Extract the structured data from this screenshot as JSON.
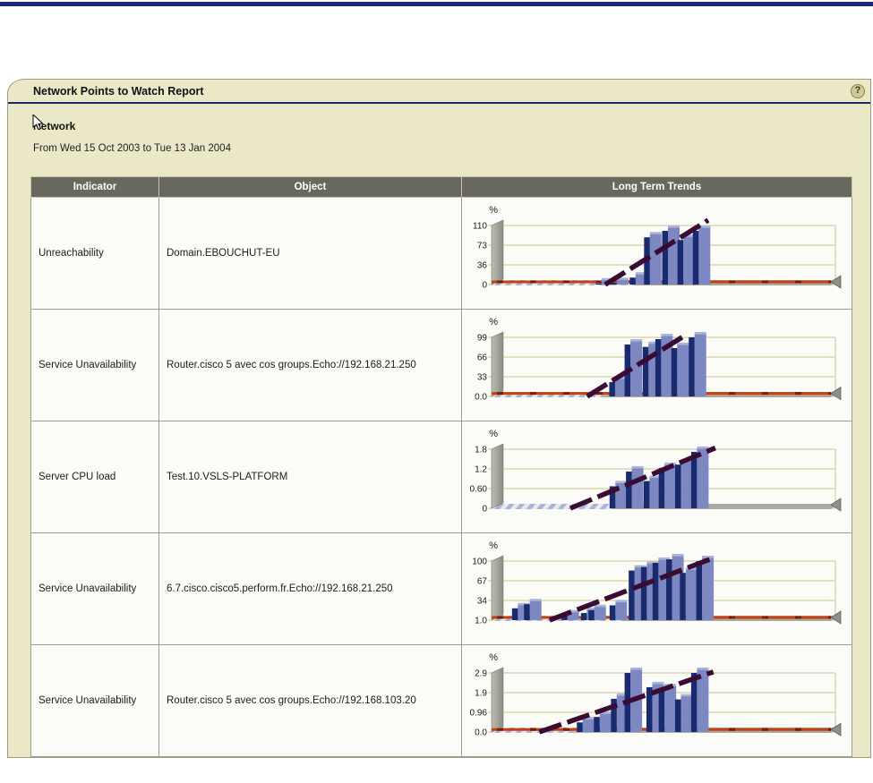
{
  "panel": {
    "title": "Network Points to Watch Report",
    "help_icon": "?",
    "section_title": "Network",
    "date_range": "From Wed 15 Oct 2003 to Tue 13 Jan 2004"
  },
  "table": {
    "columns": [
      "Indicator",
      "Object",
      "Long Term Trends"
    ],
    "rows": [
      {
        "indicator": "Unreachability",
        "object": "Domain.EBOUCHUT-EU"
      },
      {
        "indicator": "Service Unavailability",
        "object": "Router.cisco 5 avec cos groups.Echo://192.168.21.250"
      },
      {
        "indicator": "Server CPU load",
        "object": "Test.10.VSLS-PLATFORM"
      },
      {
        "indicator": "Service Unavailability",
        "object": "6.7.cisco.cisco5.perform.fr.Echo://192.168.21.250"
      },
      {
        "indicator": "Service Unavailability",
        "object": "Router.cisco 5 avec cos groups.Echo://192.168.103.20"
      }
    ]
  },
  "chart_data": [
    {
      "type": "bar",
      "title": "",
      "xlabel": "",
      "ylabel": "%",
      "yticks": [
        "110",
        "73",
        "36",
        "0"
      ],
      "ylim": [
        0,
        110
      ],
      "grid": true,
      "legend": [],
      "bars": [
        {
          "x": 0.305,
          "v": 2
        },
        {
          "x": 0.35,
          "v": 3
        },
        {
          "x": 0.405,
          "v": 13
        },
        {
          "x": 0.447,
          "v": 88
        },
        {
          "x": 0.5,
          "v": 100
        },
        {
          "x": 0.545,
          "v": 83
        },
        {
          "x": 0.59,
          "v": 100
        }
      ],
      "trend_line": {
        "x1": 0.333,
        "v1": 0,
        "x2": 0.635,
        "v2": 120
      },
      "threshold": 5,
      "stripe_end": 0.42
    },
    {
      "type": "bar",
      "title": "",
      "xlabel": "",
      "ylabel": "%",
      "yticks": [
        "99",
        "66",
        "33",
        "0.0"
      ],
      "ylim": [
        0,
        99
      ],
      "grid": true,
      "legend": [],
      "bars": [
        {
          "x": 0.345,
          "v": 24
        },
        {
          "x": 0.39,
          "v": 87
        },
        {
          "x": 0.443,
          "v": 83
        },
        {
          "x": 0.48,
          "v": 96
        },
        {
          "x": 0.527,
          "v": 81
        },
        {
          "x": 0.578,
          "v": 99
        }
      ],
      "trend_line": {
        "x1": 0.28,
        "v1": 0,
        "x2": 0.572,
        "v2": 104
      },
      "threshold": 5,
      "stripe_end": 0.33
    },
    {
      "type": "bar",
      "title": "",
      "xlabel": "",
      "ylabel": "%",
      "yticks": [
        "1.8",
        "1.2",
        "0.60",
        "0"
      ],
      "ylim": [
        0,
        1.8
      ],
      "grid": true,
      "legend": [],
      "bars": [
        {
          "x": 0.346,
          "v": 0.67
        },
        {
          "x": 0.394,
          "v": 1.12
        },
        {
          "x": 0.446,
          "v": 0.83
        },
        {
          "x": 0.49,
          "v": 1.23
        },
        {
          "x": 0.538,
          "v": 1.33
        },
        {
          "x": 0.585,
          "v": 1.72
        }
      ],
      "trend_line": {
        "x1": 0.231,
        "v1": 0,
        "x2": 0.656,
        "v2": 1.84
      },
      "threshold": null,
      "stripe_end": 0.35
    },
    {
      "type": "bar",
      "title": "",
      "xlabel": "",
      "ylabel": "%",
      "yticks": [
        "100",
        "67",
        "34",
        "1.0"
      ],
      "ylim": [
        0,
        100
      ],
      "grid": true,
      "legend": [],
      "bars": [
        {
          "x": 0.06,
          "v": 20
        },
        {
          "x": 0.095,
          "v": 27
        },
        {
          "x": 0.205,
          "v": 8
        },
        {
          "x": 0.262,
          "v": 12
        },
        {
          "x": 0.284,
          "v": 17
        },
        {
          "x": 0.346,
          "v": 25
        },
        {
          "x": 0.402,
          "v": 84
        },
        {
          "x": 0.438,
          "v": 90
        },
        {
          "x": 0.472,
          "v": 97
        },
        {
          "x": 0.512,
          "v": 103
        },
        {
          "x": 0.552,
          "v": 80
        },
        {
          "x": 0.6,
          "v": 100
        }
      ],
      "trend_line": {
        "x1": 0.17,
        "v1": 0,
        "x2": 0.64,
        "v2": 103
      },
      "threshold": 4.5,
      "stripe_end": 0.38
    },
    {
      "type": "bar",
      "title": "",
      "xlabel": "",
      "ylabel": "%",
      "yticks": [
        "2.9",
        "1.9",
        "0.96",
        "0.0"
      ],
      "ylim": [
        0,
        2.9
      ],
      "grid": true,
      "legend": [],
      "bars": [
        {
          "x": 0.25,
          "v": 0.47
        },
        {
          "x": 0.3,
          "v": 0.74
        },
        {
          "x": 0.35,
          "v": 1.63
        },
        {
          "x": 0.39,
          "v": 2.9
        },
        {
          "x": 0.454,
          "v": 2.2
        },
        {
          "x": 0.49,
          "v": 2.1
        },
        {
          "x": 0.538,
          "v": 1.6
        },
        {
          "x": 0.585,
          "v": 2.9
        }
      ],
      "trend_line": {
        "x1": 0.14,
        "v1": 0,
        "x2": 0.65,
        "v2": 2.95
      },
      "threshold": 0.12,
      "stripe_end": 0.24
    }
  ],
  "colors": {
    "top_bar": "#1b2a70",
    "panel_bg": "#ebe8c8",
    "header_bg": "#68685f",
    "bar_light": "#7d88c2",
    "bar_light_top": "#aab3d9",
    "bar_dark": "#1a2a6e",
    "trend": "#3a0c33",
    "threshold": "#c8400f",
    "threshold_dash": "#801c02",
    "gridline": "#d2cf9f",
    "floor": "#a9a99d",
    "pillar_light": "#bcbcb4",
    "pillar_dark": "#8b8b80"
  }
}
